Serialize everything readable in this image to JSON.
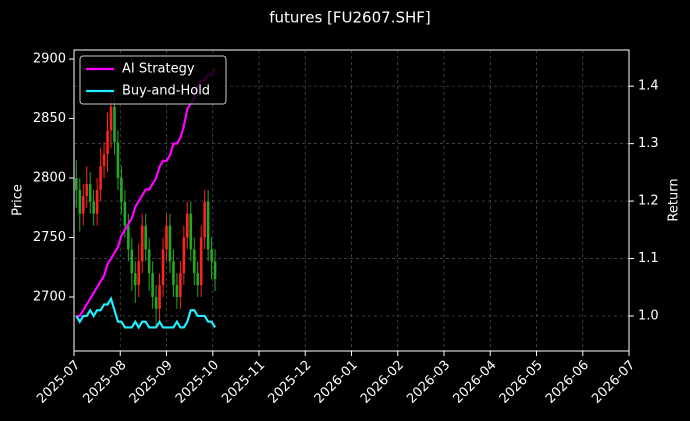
{
  "chart_data": {
    "type": "candlestick",
    "title": "futures [FU2607.SHF]",
    "y_label": "Price",
    "y2_label": "Return",
    "xlim": [
      0,
      12
    ],
    "xticks": [
      {
        "value": 0,
        "label": "2025-07"
      },
      {
        "value": 1,
        "label": "2025-08"
      },
      {
        "value": 2,
        "label": "2025-09"
      },
      {
        "value": 3,
        "label": "2025-10"
      },
      {
        "value": 4,
        "label": "2025-11"
      },
      {
        "value": 5,
        "label": "2025-12"
      },
      {
        "value": 6,
        "label": "2026-01"
      },
      {
        "value": 7,
        "label": "2026-02"
      },
      {
        "value": 8,
        "label": "2026-03"
      },
      {
        "value": 9,
        "label": "2026-04"
      },
      {
        "value": 10,
        "label": "2026-05"
      },
      {
        "value": 11,
        "label": "2026-06"
      },
      {
        "value": 12,
        "label": "2026-07"
      }
    ],
    "ylim": [
      2654.6,
      2907.6
    ],
    "yticks": [
      2700,
      2750,
      2800,
      2850,
      2900
    ],
    "y2lim": [
      0.939,
      1.463
    ],
    "y2ticks": [
      {
        "value": 1,
        "label": "1.0"
      },
      1.1,
      1.2,
      1.3,
      1.4
    ],
    "grid": true,
    "legend": "upper left",
    "up_color": "#ff2020",
    "down_color": "#22aa22",
    "x": [
      0.05,
      0.125,
      0.2,
      0.275,
      0.35,
      0.425,
      0.5,
      0.575,
      0.65,
      0.725,
      0.8,
      0.875,
      0.95,
      1.025,
      1.1,
      1.175,
      1.25,
      1.325,
      1.4,
      1.475,
      1.55,
      1.625,
      1.7,
      1.775,
      1.85,
      1.925,
      2.0,
      2.075,
      2.15,
      2.225,
      2.3,
      2.375,
      2.45,
      2.525,
      2.6,
      2.675,
      2.75,
      2.825,
      2.9,
      2.975,
      3.05
    ],
    "open": [
      2800,
      2790,
      2770,
      2785,
      2795,
      2780,
      2770,
      2790,
      2810,
      2820,
      2840,
      2860,
      2830,
      2800,
      2780,
      2760,
      2740,
      2720,
      2710,
      2730,
      2760,
      2740,
      2720,
      2700,
      2690,
      2710,
      2740,
      2760,
      2730,
      2710,
      2700,
      2720,
      2750,
      2770,
      2740,
      2720,
      2710,
      2750,
      2780,
      2740,
      2730
    ],
    "high": [
      2815,
      2800,
      2795,
      2810,
      2805,
      2790,
      2800,
      2825,
      2830,
      2855,
      2875,
      2870,
      2840,
      2810,
      2790,
      2770,
      2750,
      2730,
      2745,
      2770,
      2770,
      2750,
      2730,
      2710,
      2720,
      2750,
      2770,
      2770,
      2740,
      2720,
      2730,
      2760,
      2780,
      2780,
      2750,
      2730,
      2760,
      2790,
      2790,
      2750,
      2740
    ],
    "low": [
      2775,
      2755,
      2760,
      2775,
      2770,
      2760,
      2760,
      2780,
      2800,
      2805,
      2825,
      2820,
      2790,
      2770,
      2750,
      2730,
      2705,
      2695,
      2700,
      2720,
      2730,
      2705,
      2690,
      2675,
      2680,
      2700,
      2730,
      2720,
      2700,
      2690,
      2690,
      2710,
      2740,
      2730,
      2710,
      2700,
      2700,
      2740,
      2730,
      2715,
      2705
    ],
    "close": [
      2790,
      2770,
      2785,
      2795,
      2780,
      2770,
      2790,
      2810,
      2820,
      2840,
      2860,
      2830,
      2800,
      2780,
      2760,
      2740,
      2720,
      2710,
      2730,
      2760,
      2740,
      2720,
      2700,
      2690,
      2710,
      2740,
      2760,
      2730,
      2710,
      2700,
      2720,
      2750,
      2770,
      2740,
      2720,
      2710,
      2750,
      2780,
      2740,
      2730,
      2715
    ],
    "series": [
      {
        "name": "AI Strategy",
        "color": "#ff00ff",
        "axis": "y2",
        "values": [
          1.0,
          1.0,
          1.01,
          1.02,
          1.03,
          1.04,
          1.05,
          1.06,
          1.07,
          1.09,
          1.1,
          1.11,
          1.12,
          1.14,
          1.15,
          1.16,
          1.17,
          1.19,
          1.2,
          1.21,
          1.22,
          1.22,
          1.23,
          1.24,
          1.26,
          1.27,
          1.27,
          1.28,
          1.3,
          1.3,
          1.31,
          1.33,
          1.36,
          1.37,
          1.38,
          1.4,
          1.41,
          1.41,
          1.42,
          1.42,
          1.43
        ]
      },
      {
        "name": "Buy-and-Hold",
        "color": "#22eeff",
        "axis": "y2",
        "values": [
          1.0,
          0.99,
          1.0,
          1.0,
          1.01,
          1.0,
          1.01,
          1.01,
          1.02,
          1.02,
          1.03,
          1.01,
          0.99,
          0.99,
          0.98,
          0.98,
          0.98,
          0.99,
          0.98,
          0.99,
          0.99,
          0.98,
          0.98,
          0.98,
          0.99,
          0.98,
          0.98,
          0.98,
          0.98,
          0.99,
          0.98,
          0.98,
          0.99,
          1.01,
          1.01,
          1.0,
          1.0,
          1.0,
          0.99,
          0.99,
          0.98
        ]
      }
    ]
  }
}
